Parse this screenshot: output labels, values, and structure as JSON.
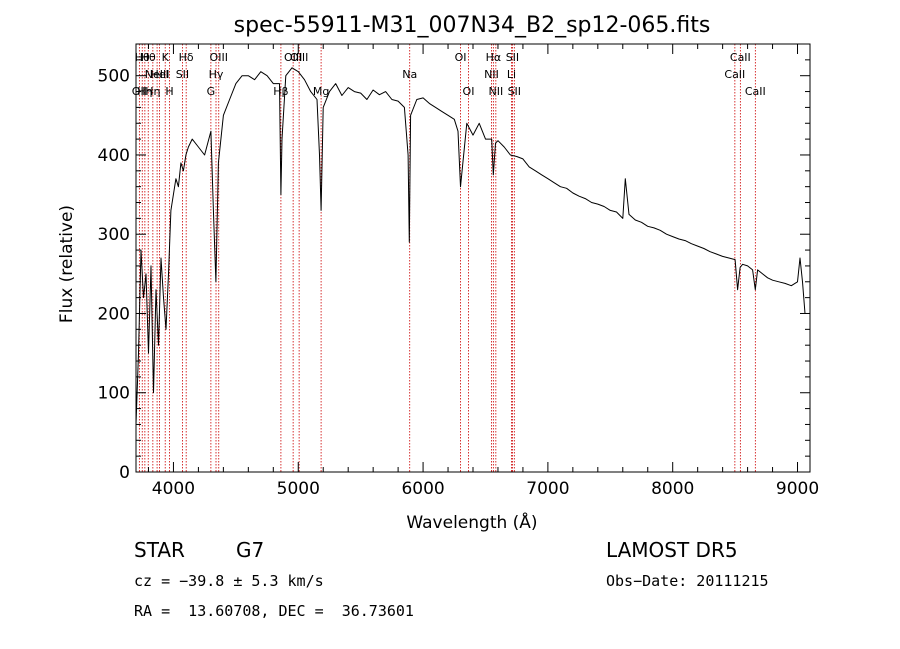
{
  "chart_data": {
    "type": "line",
    "title": "spec-55911-M31_007N34_B2_sp12-065.fits",
    "xlabel": "Wavelength (Å)",
    "ylabel": "Flux (relative)",
    "xlim": [
      3700,
      9100
    ],
    "ylim": [
      0,
      540
    ],
    "xticks": [
      4000,
      5000,
      6000,
      7000,
      8000,
      9000
    ],
    "yticks": [
      0,
      100,
      200,
      300,
      400,
      500
    ],
    "grid": false,
    "series": [
      {
        "x": [
          3700,
          3720,
          3740,
          3760,
          3780,
          3800,
          3820,
          3840,
          3860,
          3880,
          3900,
          3920,
          3940,
          3960,
          3980,
          4000,
          4020,
          4040,
          4060,
          4080,
          4100,
          4120,
          4150,
          4200,
          4250,
          4300,
          4320,
          4340,
          4360,
          4400,
          4450,
          4500,
          4550,
          4600,
          4650,
          4700,
          4750,
          4800,
          4850,
          4861,
          4870,
          4900,
          4950,
          5000,
          5050,
          5100,
          5150,
          5170,
          5183,
          5200,
          5250,
          5300,
          5350,
          5400,
          5450,
          5500,
          5550,
          5600,
          5650,
          5700,
          5750,
          5800,
          5850,
          5880,
          5890,
          5900,
          5950,
          6000,
          6050,
          6100,
          6150,
          6200,
          6250,
          6280,
          6300,
          6350,
          6400,
          6450,
          6500,
          6550,
          6563,
          6580,
          6600,
          6650,
          6700,
          6750,
          6800,
          6850,
          6900,
          6950,
          7000,
          7050,
          7100,
          7150,
          7200,
          7250,
          7300,
          7350,
          7400,
          7450,
          7500,
          7550,
          7600,
          7620,
          7650,
          7700,
          7750,
          7800,
          7850,
          7900,
          7950,
          8000,
          8050,
          8100,
          8150,
          8200,
          8250,
          8300,
          8350,
          8400,
          8450,
          8500,
          8520,
          8540,
          8560,
          8600,
          8640,
          8662,
          8680,
          8720,
          8760,
          8800,
          8850,
          8900,
          8950,
          9000,
          9020,
          9040,
          9060
        ],
        "y": [
          60,
          150,
          280,
          220,
          250,
          150,
          260,
          100,
          230,
          160,
          270,
          220,
          180,
          250,
          330,
          350,
          370,
          360,
          390,
          380,
          400,
          410,
          420,
          410,
          400,
          430,
          330,
          240,
          390,
          450,
          470,
          490,
          500,
          500,
          495,
          505,
          500,
          490,
          490,
          350,
          420,
          500,
          510,
          505,
          495,
          480,
          470,
          400,
          330,
          460,
          480,
          490,
          475,
          485,
          480,
          478,
          470,
          482,
          476,
          480,
          470,
          468,
          460,
          400,
          290,
          450,
          470,
          472,
          465,
          460,
          455,
          450,
          445,
          430,
          360,
          440,
          425,
          440,
          420,
          420,
          375,
          415,
          418,
          410,
          400,
          398,
          395,
          385,
          380,
          375,
          370,
          365,
          360,
          358,
          352,
          348,
          345,
          340,
          338,
          335,
          330,
          328,
          320,
          370,
          325,
          318,
          315,
          310,
          308,
          305,
          300,
          297,
          294,
          292,
          288,
          285,
          282,
          278,
          275,
          272,
          270,
          268,
          230,
          258,
          262,
          260,
          255,
          230,
          255,
          250,
          245,
          242,
          240,
          238,
          235,
          240,
          270,
          240,
          200
        ]
      }
    ],
    "lines": [
      {
        "x": 3727,
        "label": "OII",
        "row": 3
      },
      {
        "x": 3750,
        "label": "Hθ",
        "row": 1
      },
      {
        "x": 3771,
        "label": "Hη",
        "row": 3
      },
      {
        "x": 3798,
        "label": "Hθ",
        "row": 1
      },
      {
        "x": 3835,
        "label": "Hη",
        "row": 3
      },
      {
        "x": 3869,
        "label": "NeIII",
        "row": 2
      },
      {
        "x": 3889,
        "label": "HeI",
        "row": 2
      },
      {
        "x": 3934,
        "label": "K",
        "row": 1
      },
      {
        "x": 3969,
        "label": "H",
        "row": 3
      },
      {
        "x": 4072,
        "label": "SII",
        "row": 2
      },
      {
        "x": 4102,
        "label": "Hδ",
        "row": 1
      },
      {
        "x": 4300,
        "label": "G",
        "row": 3
      },
      {
        "x": 4341,
        "label": "Hγ",
        "row": 2
      },
      {
        "x": 4363,
        "label": "OIII",
        "row": 1
      },
      {
        "x": 4861,
        "label": "Hβ",
        "row": 3
      },
      {
        "x": 4959,
        "label": "OIII",
        "row": 1
      },
      {
        "x": 5007,
        "label": "OIII",
        "row": 1
      },
      {
        "x": 5183,
        "label": "Mg",
        "row": 3
      },
      {
        "x": 5893,
        "label": "Na",
        "row": 2
      },
      {
        "x": 6300,
        "label": "OI",
        "row": 1
      },
      {
        "x": 6364,
        "label": "OI",
        "row": 3
      },
      {
        "x": 6548,
        "label": "NII",
        "row": 2
      },
      {
        "x": 6563,
        "label": "Hα",
        "row": 1
      },
      {
        "x": 6583,
        "label": "NII",
        "row": 3
      },
      {
        "x": 6708,
        "label": "Li",
        "row": 2
      },
      {
        "x": 6716,
        "label": "SII",
        "row": 1
      },
      {
        "x": 6731,
        "label": "SII",
        "row": 3
      },
      {
        "x": 8498,
        "label": "CaII",
        "row": 2
      },
      {
        "x": 8542,
        "label": "CaII",
        "row": 1
      },
      {
        "x": 8662,
        "label": "CaII",
        "row": 3
      }
    ]
  },
  "info": {
    "class": "STAR",
    "subclass": "G7",
    "survey": "LAMOST DR5",
    "cz": "cz = −39.8 ± 5.3 km/s",
    "obs_date": "Obs−Date: 20111215",
    "coords": "RA =  13.60708, DEC =  36.73601"
  },
  "colors": {
    "spectrum": "#000000",
    "line_markers": "#cc0000",
    "axes": "#000000"
  }
}
